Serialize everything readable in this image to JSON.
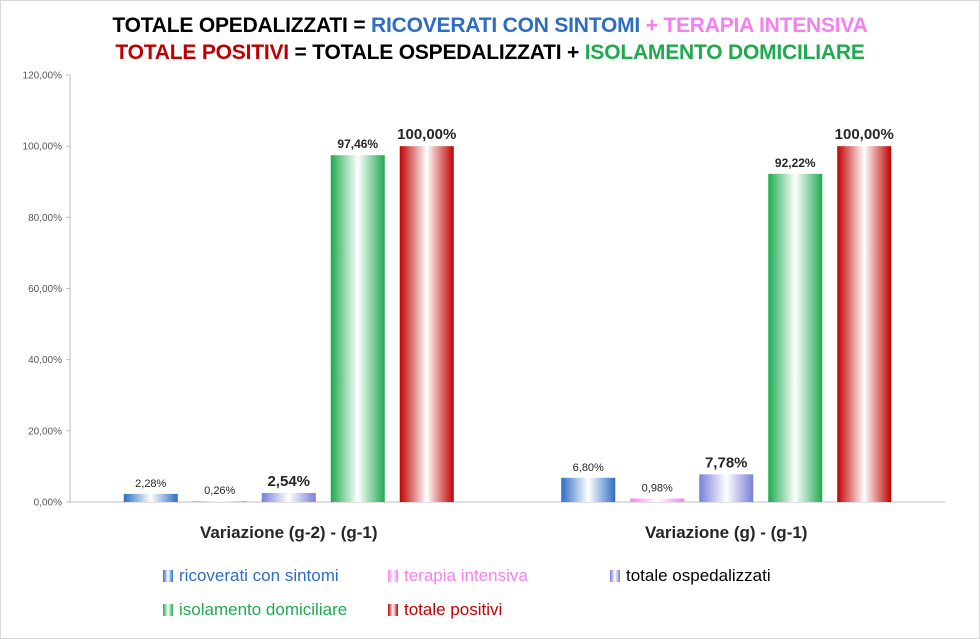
{
  "title": {
    "line1": [
      {
        "text": "TOTALE OPEDALIZZATI = ",
        "color": "#000000"
      },
      {
        "text": "RICOVERATI CON SINTOMI",
        "color": "#2e6dc4"
      },
      {
        "text": " + TERAPIA INTENSIVA",
        "color": "#f580f0"
      }
    ],
    "line2": [
      {
        "text": "TOTALE POSITIVI",
        "color": "#c00000"
      },
      {
        "text": " = TOTALE OSPEDALIZZATI + ",
        "color": "#000000"
      },
      {
        "text": "ISOLAMENTO DOMICILIARE",
        "color": "#1faa4f"
      }
    ]
  },
  "chart_data": {
    "type": "bar",
    "categories": [
      "Variazione (g-2) - (g-1)",
      "Variazione (g) - (g-1)"
    ],
    "series": [
      {
        "name": "ricoverati con sintomi",
        "values": [
          2.28,
          6.8
        ],
        "labels": [
          "2,28%",
          "6,80%"
        ],
        "color": "#2e6dc4",
        "label_style": "small"
      },
      {
        "name": "terapia intensiva",
        "values": [
          0.26,
          0.98
        ],
        "labels": [
          "0,26%",
          "0,98%"
        ],
        "color": "#f580f0",
        "label_style": "small"
      },
      {
        "name": "totale ospedalizzati",
        "values": [
          2.54,
          7.78
        ],
        "labels": [
          "2,54%",
          "7,78%"
        ],
        "color": "#7a7fd8",
        "label_style": "big"
      },
      {
        "name": "isolamento domiciliare",
        "values": [
          97.46,
          92.22
        ],
        "labels": [
          "97,46%",
          "92,22%"
        ],
        "color": "#1faa4f",
        "label_style": "mid"
      },
      {
        "name": "totale positivi",
        "values": [
          100.0,
          100.0
        ],
        "labels": [
          "100,00%",
          "100,00%"
        ],
        "color": "#c00000",
        "label_style": "big"
      }
    ],
    "ylim": [
      0,
      120
    ],
    "yticks": [
      "0,00%",
      "20,00%",
      "40,00%",
      "60,00%",
      "80,00%",
      "100,00%",
      "120,00%"
    ],
    "grid": false,
    "legend_position": "bottom"
  },
  "legend": [
    {
      "label": "ricoverati con sintomi",
      "color": "#2e6dc4"
    },
    {
      "label": "terapia intensiva",
      "color": "#f580f0"
    },
    {
      "label": "totale ospedalizzati",
      "color": "#000000",
      "swatch": "#7a7fd8"
    },
    {
      "label": "isolamento domiciliare",
      "color": "#1faa4f"
    },
    {
      "label": "totale positivi",
      "color": "#c00000"
    }
  ]
}
